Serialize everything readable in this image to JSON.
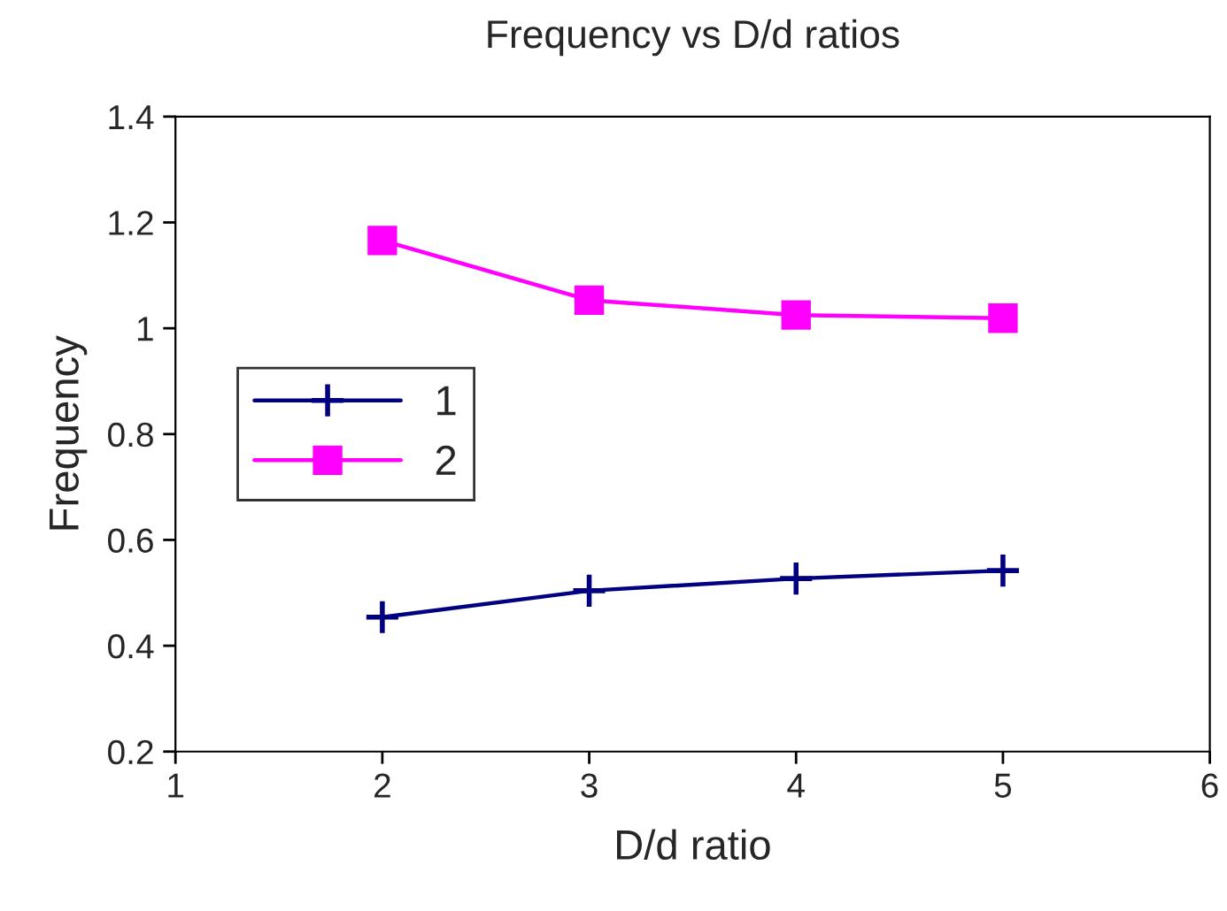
{
  "chart_data": {
    "type": "line",
    "title": "Frequency vs D/d ratios",
    "xlabel": "D/d ratio",
    "ylabel": "Frequency",
    "x": [
      2,
      3,
      4,
      5
    ],
    "series": [
      {
        "name": "1",
        "color": "#000080",
        "values": [
          0.454,
          0.504,
          0.527,
          0.542
        ],
        "marker": "cross"
      },
      {
        "name": "2",
        "color": "#ff00ff",
        "values": [
          1.166,
          1.053,
          1.025,
          1.019
        ],
        "marker": "square"
      }
    ],
    "xlim": [
      1,
      6
    ],
    "xticks": [
      1,
      2,
      3,
      4,
      5,
      6
    ],
    "ylim": [
      0.2,
      1.4
    ],
    "yticks": [
      0.2,
      0.4,
      0.6,
      0.8,
      1,
      1.2,
      1.4
    ],
    "grid": false,
    "legend": "center left",
    "line_style": "solid"
  }
}
